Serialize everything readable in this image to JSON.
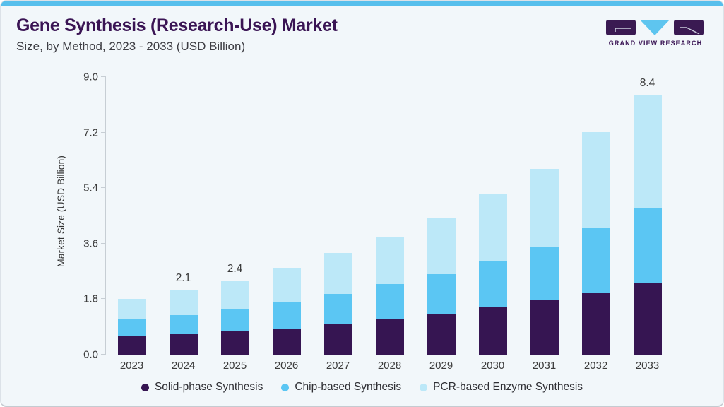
{
  "header": {
    "title": "Gene Synthesis (Research-Use) Market",
    "subtitle": "Size, by Method, 2023 - 2033 (USD Billion)",
    "logo_text": "GRAND VIEW RESEARCH"
  },
  "colors": {
    "accent_bar": "#57BFEC",
    "card_background": "#F2F7FA",
    "title_purple": "#3A1454",
    "axis_gray": "#C7CED4",
    "text_gray": "#3C3C3C",
    "logo_purple": "#3A1A52",
    "logo_triangle_blue": "#5EC5EF"
  },
  "chart_data": {
    "type": "bar",
    "stacked": true,
    "title": "Gene Synthesis (Research-Use) Market Size, by Method, 2023 - 2033 (USD Billion)",
    "categories": [
      "2023",
      "2024",
      "2025",
      "2026",
      "2027",
      "2028",
      "2029",
      "2030",
      "2031",
      "2032",
      "2033"
    ],
    "series": [
      {
        "name": "Solid-phase Synthesis",
        "color": "#361552",
        "values": [
          0.62,
          0.67,
          0.76,
          0.85,
          1.0,
          1.14,
          1.3,
          1.52,
          1.75,
          2.0,
          2.3
        ]
      },
      {
        "name": "Chip-based Synthesis",
        "color": "#5BC6F3",
        "values": [
          0.54,
          0.6,
          0.7,
          0.85,
          0.97,
          1.14,
          1.3,
          1.51,
          1.75,
          2.1,
          2.45
        ]
      },
      {
        "name": "PCR-based Enzyme Synthesis",
        "color": "#BCE8F8",
        "values": [
          0.64,
          0.83,
          0.94,
          1.1,
          1.33,
          1.52,
          1.8,
          2.17,
          2.5,
          3.1,
          3.65
        ]
      }
    ],
    "totals": [
      1.8,
      2.1,
      2.4,
      2.8,
      3.3,
      3.8,
      4.4,
      5.2,
      6.0,
      7.2,
      8.4
    ],
    "bar_labels": [
      "",
      "2.1",
      "2.4",
      "",
      "",
      "",
      "",
      "",
      "",
      "",
      "8.4"
    ],
    "xlabel": "",
    "ylabel": "Market Size (USD Billion)",
    "ylim": [
      0,
      9
    ],
    "yticks": [
      0,
      1.8,
      3.6,
      5.4,
      7.2,
      9
    ],
    "grid": false,
    "legend_position": "bottom"
  }
}
